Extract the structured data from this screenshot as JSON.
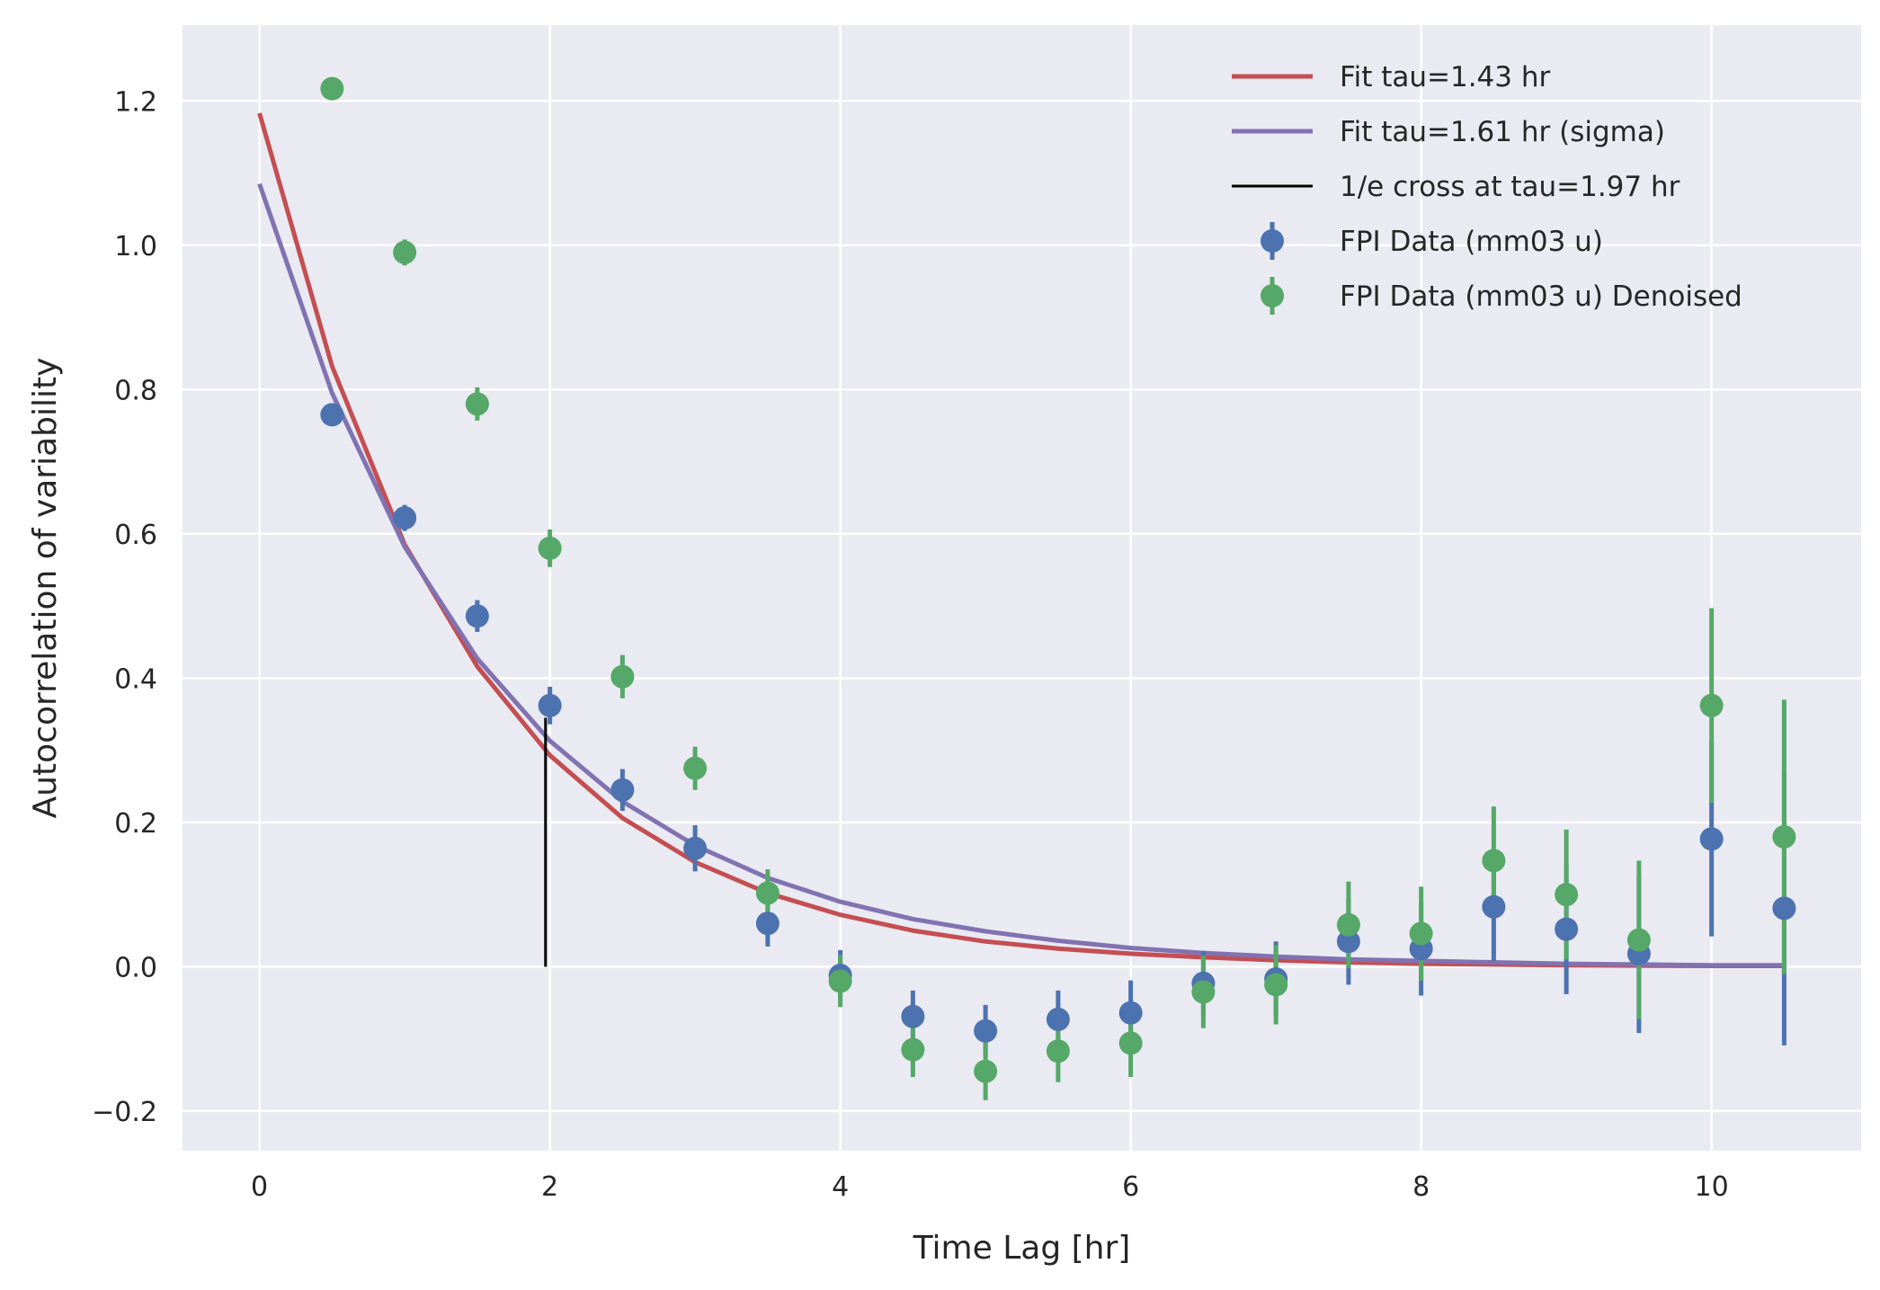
{
  "chart_data": {
    "type": "scatter",
    "title": "",
    "xlabel": "Time Lag [hr]",
    "ylabel": "Autocorrelation of variability",
    "xlim": [
      -0.53,
      11.03
    ],
    "ylim": [
      -0.255,
      1.305
    ],
    "xticks": [
      0,
      2,
      4,
      6,
      8,
      10
    ],
    "xtick_labels": [
      "0",
      "2",
      "4",
      "6",
      "8",
      "10"
    ],
    "yticks": [
      -0.2,
      0.0,
      0.2,
      0.4,
      0.6,
      0.8,
      1.0,
      1.2
    ],
    "ytick_labels": [
      "−0.2",
      "0.0",
      "0.2",
      "0.4",
      "0.6",
      "0.8",
      "1.0",
      "1.2"
    ],
    "grid": true,
    "legend_position": "top-right",
    "colors": {
      "background": "#eaeaf2",
      "grid": "#ffffff",
      "fit_red": "#c44e52",
      "fit_purple": "#8172b2",
      "cross_line": "#000000",
      "data_blue": "#4c72b0",
      "data_green": "#55a868"
    },
    "lines": [
      {
        "name": "Fit tau=1.43 hr",
        "color": "#c44e52",
        "x": [
          0,
          0.5,
          1,
          1.5,
          2,
          2.5,
          3,
          3.5,
          4,
          4.5,
          5,
          5.5,
          6,
          6.5,
          7,
          7.5,
          8,
          8.5,
          9,
          9.5,
          10,
          10.5
        ],
        "y": [
          1.183,
          0.832,
          0.585,
          0.416,
          0.293,
          0.206,
          0.145,
          0.102,
          0.072,
          0.05,
          0.035,
          0.025,
          0.018,
          0.013,
          0.009,
          0.006,
          0.004,
          0.003,
          0.002,
          0.0015,
          0.001,
          0.001
        ]
      },
      {
        "name": "Fit tau=1.61 hr (sigma)",
        "color": "#8172b2",
        "x": [
          0,
          0.5,
          1,
          1.5,
          2,
          2.5,
          3,
          3.5,
          4,
          4.5,
          5,
          5.5,
          6,
          6.5,
          7,
          7.5,
          8,
          8.5,
          9,
          9.5,
          10,
          10.5
        ],
        "y": [
          1.085,
          0.795,
          0.582,
          0.427,
          0.313,
          0.229,
          0.168,
          0.123,
          0.09,
          0.066,
          0.049,
          0.036,
          0.026,
          0.019,
          0.014,
          0.01,
          0.008,
          0.006,
          0.004,
          0.003,
          0.002,
          0.002
        ]
      }
    ],
    "vlines": [
      {
        "name": "1/e cross at tau=1.97 hr",
        "color": "#000000",
        "x": 1.97,
        "ymin": 0.0,
        "ymax": 0.345
      }
    ],
    "series": [
      {
        "name": "FPI Data (mm03 u)",
        "color": "#4c72b0",
        "x": [
          0.5,
          1,
          1.5,
          2,
          2.5,
          3,
          3.5,
          4,
          4.5,
          5,
          5.5,
          6,
          6.5,
          7,
          7.5,
          8,
          8.5,
          9,
          9.5,
          10,
          10.5
        ],
        "y": [
          0.765,
          0.622,
          0.486,
          0.362,
          0.245,
          0.164,
          0.06,
          -0.012,
          -0.069,
          -0.089,
          -0.073,
          -0.064,
          -0.023,
          -0.017,
          0.035,
          0.025,
          0.083,
          0.052,
          0.018,
          0.177,
          0.081
        ],
        "yerr": [
          0.012,
          0.018,
          0.022,
          0.026,
          0.029,
          0.032,
          0.032,
          0.035,
          0.036,
          0.036,
          0.04,
          0.045,
          0.045,
          0.052,
          0.06,
          0.065,
          0.075,
          0.09,
          0.11,
          0.135,
          0.19
        ]
      },
      {
        "name": "FPI Data (mm03 u) Denoised",
        "color": "#55a868",
        "x": [
          0.5,
          1,
          1.5,
          2,
          2.5,
          3,
          3.5,
          4,
          4.5,
          5,
          5.5,
          6,
          6.5,
          7,
          7.5,
          8,
          8.5,
          9,
          9.5,
          10,
          10.5
        ],
        "y": [
          1.217,
          0.99,
          0.78,
          0.58,
          0.402,
          0.275,
          0.102,
          -0.02,
          -0.115,
          -0.145,
          -0.117,
          -0.106,
          -0.035,
          -0.025,
          0.058,
          0.046,
          0.147,
          0.1,
          0.037,
          0.362,
          0.18
        ],
        "yerr": [
          0.01,
          0.018,
          0.023,
          0.026,
          0.03,
          0.03,
          0.033,
          0.036,
          0.038,
          0.04,
          0.043,
          0.047,
          0.05,
          0.055,
          0.06,
          0.065,
          0.075,
          0.09,
          0.11,
          0.135,
          0.19
        ]
      }
    ],
    "legend": [
      {
        "label": "Fit tau=1.43 hr",
        "kind": "line",
        "color": "#c44e52"
      },
      {
        "label": "Fit tau=1.61 hr (sigma)",
        "kind": "line",
        "color": "#8172b2"
      },
      {
        "label": "1/e cross at tau=1.97 hr",
        "kind": "thin-line",
        "color": "#000000"
      },
      {
        "label": "FPI Data (mm03 u)",
        "kind": "errorbar",
        "color": "#4c72b0"
      },
      {
        "label": "FPI Data (mm03 u) Denoised",
        "kind": "errorbar",
        "color": "#55a868"
      }
    ]
  }
}
